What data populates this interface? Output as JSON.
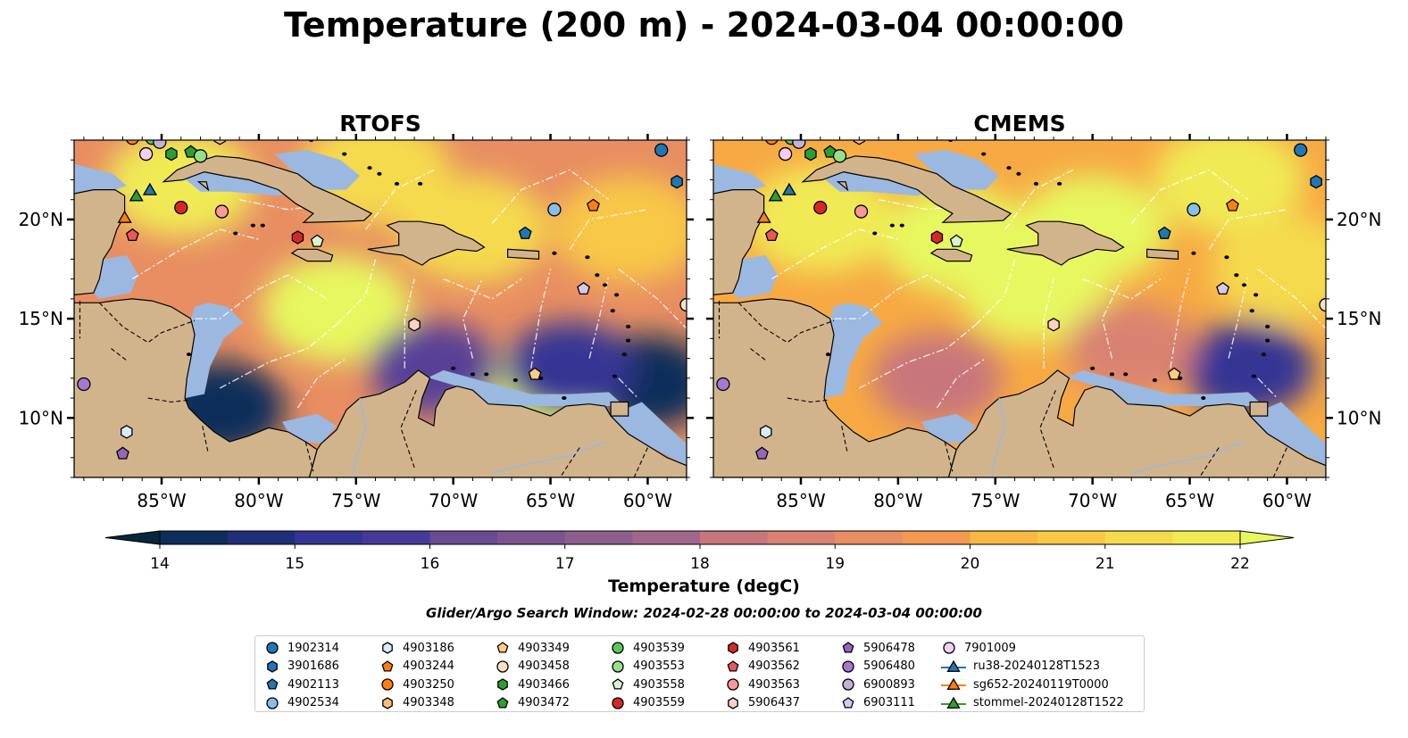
{
  "figure": {
    "title": "Temperature (200 m) - 2024-03-04 00:00:00",
    "colorbar_label": "Temperature (degC)",
    "search_window": "Glider/Argo Search Window: 2024-02-28 00:00:00 to 2024-03-04 00:00:00"
  },
  "colors": {
    "land": "#d2b48c",
    "shelf": "#9ab8e0",
    "boundary": "#ffffff",
    "colormap": [
      "#05283a",
      "#0d2d5a",
      "#1f2f7a",
      "#343494",
      "#47399a",
      "#583f96",
      "#6a4a92",
      "#7c5590",
      "#8e5f8e",
      "#a0678a",
      "#b46e84",
      "#c8767c",
      "#d98272",
      "#e88e62",
      "#f39a50",
      "#f7a944",
      "#f9b843",
      "#f8c846",
      "#f5da4e",
      "#f0ea55",
      "#e7f75e"
    ]
  },
  "chart_data": [
    {
      "type": "heatmap",
      "panel_title": "RTOFS",
      "xlim": [
        -89.5,
        -58.0
      ],
      "ylim": [
        7.0,
        24.0
      ],
      "x_ticks": [
        "85°W",
        "80°W",
        "75°W",
        "70°W",
        "65°W",
        "60°W"
      ],
      "y_ticks": [
        "10°N",
        "15°N",
        "20°N"
      ],
      "z_range": [
        14,
        22
      ],
      "warm_cores": [
        {
          "lon": -76.0,
          "lat": 15.5,
          "value": 22
        },
        {
          "lon": -84.0,
          "lat": 21.8,
          "value": 21.6
        },
        {
          "lon": -69.0,
          "lat": 19.5,
          "value": 21.2
        },
        {
          "lon": -74.0,
          "lat": 22.5,
          "value": 21.3
        },
        {
          "lon": -61.0,
          "lat": 19.5,
          "value": 20.7
        },
        {
          "lon": -66.0,
          "lat": 10.7,
          "value": 22
        }
      ],
      "cold_cores": [
        {
          "lon": -82.0,
          "lat": 10.5,
          "value": 14.4
        },
        {
          "lon": -60.0,
          "lat": 11.8,
          "value": 14.5
        },
        {
          "lon": -64.0,
          "lat": 12.5,
          "value": 15.3
        },
        {
          "lon": -71.0,
          "lat": 12.5,
          "value": 15.8
        }
      ]
    },
    {
      "type": "heatmap",
      "panel_title": "CMEMS",
      "xlim": [
        -89.5,
        -58.0
      ],
      "ylim": [
        7.0,
        24.0
      ],
      "x_ticks": [
        "85°W",
        "80°W",
        "75°W",
        "70°W",
        "65°W",
        "60°W"
      ],
      "y_ticks": [
        "10°N",
        "15°N",
        "20°N"
      ],
      "z_range": [
        14,
        22
      ],
      "warm_cores": [
        {
          "lon": -73.0,
          "lat": 16.5,
          "value": 21.8
        },
        {
          "lon": -77.0,
          "lat": 19.0,
          "value": 21.8
        },
        {
          "lon": -70.0,
          "lat": 19.5,
          "value": 21.8
        },
        {
          "lon": -63.0,
          "lat": 22.0,
          "value": 21.6
        },
        {
          "lon": -84.0,
          "lat": 20.0,
          "value": 21.5
        },
        {
          "lon": -60.0,
          "lat": 17.5,
          "value": 21.0
        }
      ],
      "cold_cores": [
        {
          "lon": -62.0,
          "lat": 12.5,
          "value": 15.0
        },
        {
          "lon": -78.0,
          "lat": 12.0,
          "value": 18.5
        },
        {
          "lon": -68.0,
          "lat": 13.5,
          "value": 18.8
        }
      ]
    }
  ],
  "colorbar": {
    "min": 14,
    "max": 22,
    "ticks": [
      "14",
      "15",
      "16",
      "17",
      "18",
      "19",
      "20",
      "21",
      "22"
    ]
  },
  "platforms": [
    {
      "id": "1902314",
      "marker": "circle",
      "color": "#1f77b4",
      "lon": -59.3,
      "lat": 23.5
    },
    {
      "id": "3901686",
      "marker": "hexagon",
      "color": "#1f77b4",
      "lon": -58.5,
      "lat": 21.9
    },
    {
      "id": "4902113",
      "marker": "pentagon",
      "color": "#1f77b4",
      "lon": -66.3,
      "lat": 19.3
    },
    {
      "id": "4902534",
      "marker": "circle",
      "color": "#87bde8",
      "lon": -64.8,
      "lat": 20.5
    },
    {
      "id": "4903186",
      "marker": "hexagon",
      "color": "#d6ecff",
      "lon": -86.8,
      "lat": 9.3
    },
    {
      "id": "4903244",
      "marker": "pentagon",
      "color": "#ff7f0e",
      "lon": -62.8,
      "lat": 20.7
    },
    {
      "id": "4903250",
      "marker": "circle",
      "color": "#ff7f0e",
      "lon": -86.5,
      "lat": 24.1
    },
    {
      "id": "4903348",
      "marker": "hexagon",
      "color": "#ffbb78",
      "lon": -82.0,
      "lat": 24.1
    },
    {
      "id": "4903349",
      "marker": "pentagon",
      "color": "#ffcc80",
      "lon": -65.8,
      "lat": 12.2
    },
    {
      "id": "4903458",
      "marker": "circle",
      "color": "#ffe0c0",
      "lon": -58.0,
      "lat": 15.7
    },
    {
      "id": "4903466",
      "marker": "hexagon",
      "color": "#2ca02c",
      "lon": -84.5,
      "lat": 23.3
    },
    {
      "id": "4903472",
      "marker": "pentagon",
      "color": "#2ca02c",
      "lon": -83.5,
      "lat": 23.4
    },
    {
      "id": "4903539",
      "marker": "circle",
      "color": "#59c85b",
      "lon": -85.5,
      "lat": 24.1
    },
    {
      "id": "4903553",
      "marker": "circle",
      "color": "#98df8a",
      "lon": -83.0,
      "lat": 23.2
    },
    {
      "id": "4903558",
      "marker": "pentagon",
      "color": "#d8f5d0",
      "lon": -77.0,
      "lat": 18.9
    },
    {
      "id": "4903559",
      "marker": "circle",
      "color": "#d62728",
      "lon": -84.0,
      "lat": 20.6
    },
    {
      "id": "4903561",
      "marker": "hexagon",
      "color": "#d62728",
      "lon": -78.0,
      "lat": 19.1
    },
    {
      "id": "4903562",
      "marker": "pentagon",
      "color": "#e8585a",
      "lon": -86.5,
      "lat": 19.2
    },
    {
      "id": "4903563",
      "marker": "circle",
      "color": "#ff9896",
      "lon": -81.9,
      "lat": 20.4
    },
    {
      "id": "5906437",
      "marker": "hexagon",
      "color": "#ffd0c8",
      "lon": -72.0,
      "lat": 14.7
    },
    {
      "id": "5906478",
      "marker": "pentagon",
      "color": "#9467bd",
      "lon": -87.0,
      "lat": 8.2
    },
    {
      "id": "5906480",
      "marker": "circle",
      "color": "#a678cf",
      "lon": -89.0,
      "lat": 11.7
    },
    {
      "id": "6900893",
      "marker": "circle",
      "color": "#c5b0d5",
      "lon": -85.1,
      "lat": 23.9
    },
    {
      "id": "6903111",
      "marker": "pentagon",
      "color": "#d8c8f0",
      "lon": -63.3,
      "lat": 16.5
    },
    {
      "id": "7901009",
      "marker": "circle",
      "color": "#f0d0f8",
      "lon": -85.8,
      "lat": 23.3
    }
  ],
  "gliders": [
    {
      "id": "ru38-20240128T1523",
      "color": "#1f77b4",
      "lon": -85.6,
      "lat": 21.5
    },
    {
      "id": "sg652-20240119T0000",
      "color": "#ff7f0e",
      "lon": -86.9,
      "lat": 20.1
    },
    {
      "id": "stommel-20240128T1522",
      "color": "#2ca02c",
      "lon": -86.3,
      "lat": 21.2
    }
  ]
}
